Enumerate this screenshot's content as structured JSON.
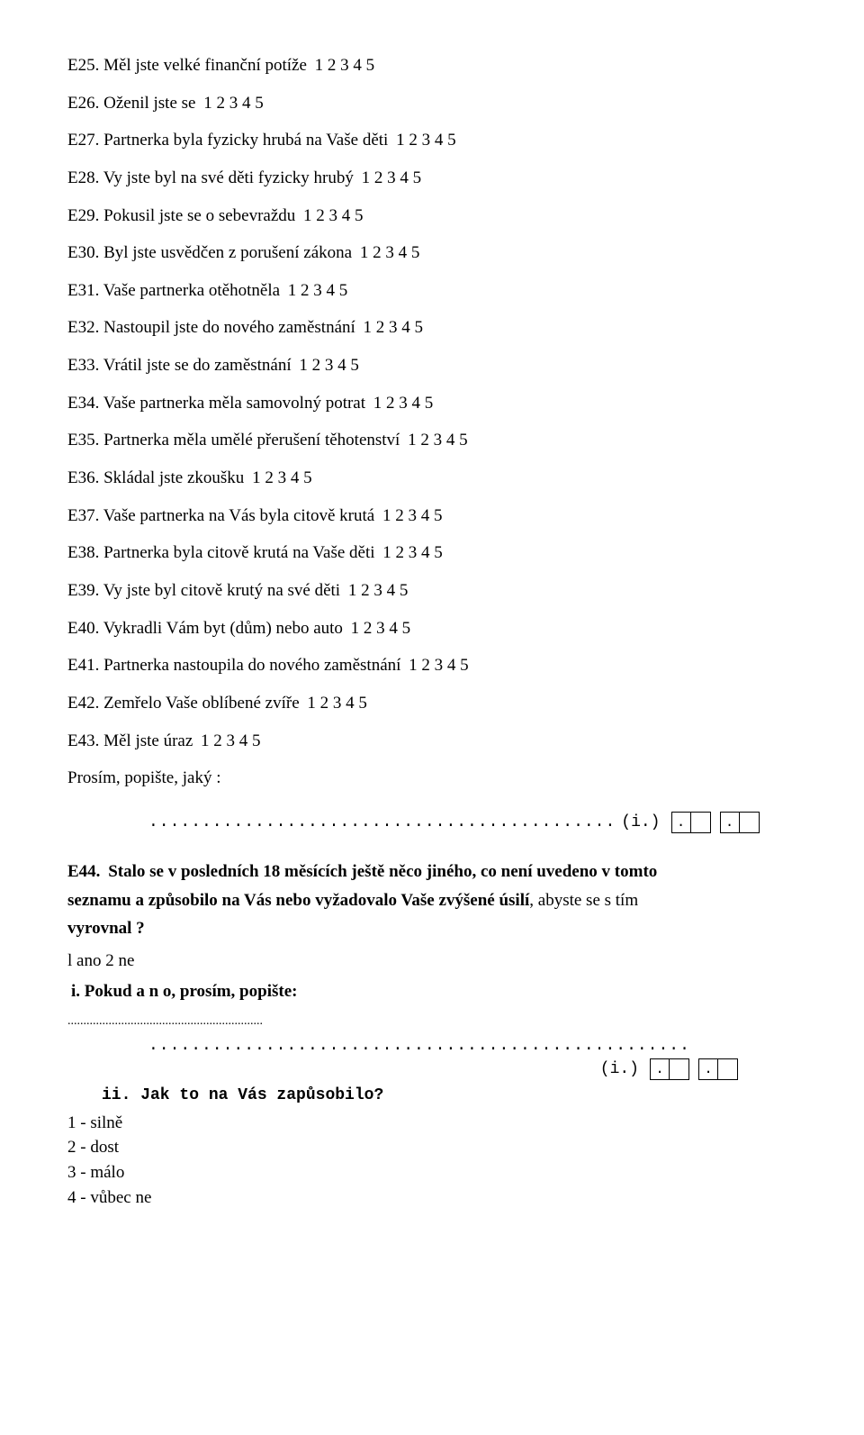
{
  "scale_options": "1 2 3 4 5",
  "items": [
    {
      "code": "E25.",
      "text": "Měl jste velké finanční potíže"
    },
    {
      "code": "E26.",
      "text": "Oženil jste se"
    },
    {
      "code": "E27.",
      "text": "Partnerka byla fyzicky hrubá na Vaše děti"
    },
    {
      "code": "E28.",
      "text": "Vy jste byl na své děti fyzicky hrubý"
    },
    {
      "code": "E29.",
      "text": "Pokusil jste se o sebevraždu"
    },
    {
      "code": "E30.",
      "text": "Byl jste usvědčen z porušení zákona"
    },
    {
      "code": "E31.",
      "text": "Vaše partnerka otěhotněla"
    },
    {
      "code": "E32.",
      "text": "Nastoupil jste do nového zaměstnání"
    },
    {
      "code": "E33.",
      "text": "Vrátil jste se do zaměstnání"
    },
    {
      "code": "E34.",
      "text": "Vaše partnerka měla samovolný potrat"
    },
    {
      "code": "E35.",
      "text": "Partnerka měla umělé přerušení těhotenství"
    },
    {
      "code": "E36.",
      "text": "Skládal jste zkoušku"
    },
    {
      "code": "E37.",
      "text": "Vaše partnerka na Vás byla citově krutá"
    },
    {
      "code": "E38.",
      "text": "Partnerka byla citově krutá na Vaše děti"
    },
    {
      "code": "E39.",
      "text": "Vy jste byl citově krutý na své děti"
    },
    {
      "code": "E40.",
      "text": "Vykradli Vám byt (dům) nebo auto"
    },
    {
      "code": "E41.",
      "text": "Partnerka nastoupila do nového zaměstnání"
    },
    {
      "code": "E42.",
      "text": "Zemřelo Vaše oblíbené zvíře"
    },
    {
      "code": "E43.",
      "text": "Měl jste úraz"
    }
  ],
  "describe_prompt": "Prosím, popište, jaký :",
  "dots1": "............................................",
  "i_label": "(i.)",
  "box_dot": ".",
  "e44": {
    "code": "E44.",
    "text_bold_1": "Stalo se v posledních 18 měsících ještě něco jiného, co není uvedeno v tomto",
    "text_bold_2_a": "seznamu a způsobilo na Vás nebo vyžadovalo Vaše zvýšené úsilí",
    "text_plain_2": ", abyste se s tím",
    "text_bold_3": "vyrovnal ?"
  },
  "yesno": "l ano 2 ne",
  "sub_i": "i. Pokud a n o, prosím, popište:",
  "dotted_short": "..............................................................",
  "dots2": "...................................................",
  "sub_ii": "ii. Jak to na Vás zapůsobilo?",
  "legend": {
    "l1": "1 - silně",
    "l2": "2 - dost",
    "l3": "3 - málo",
    "l4": "4 - vůbec ne"
  }
}
